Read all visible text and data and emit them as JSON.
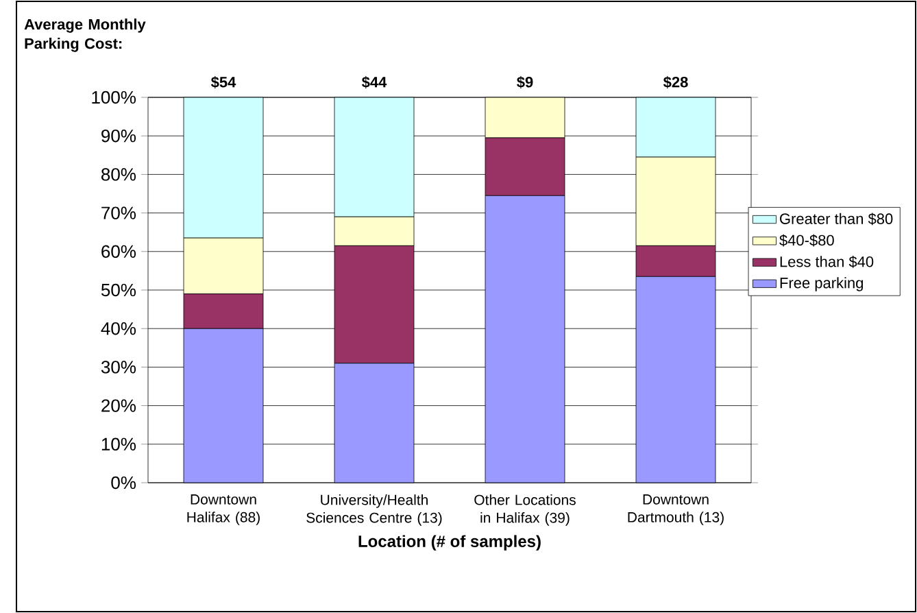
{
  "chart_data": {
    "type": "bar",
    "stacked": true,
    "title": "Average Monthly Parking Cost:",
    "xlabel": "Location (# of samples)",
    "categories": [
      "Downtown Halifax (88)",
      "University/Health Sciences Centre (13)",
      "Other Locations in Halifax (39)",
      "Downtown Dartmouth (13)"
    ],
    "series": [
      {
        "name": "Free parking",
        "color": "#9999ff",
        "values": [
          40,
          31,
          74.5,
          53.5
        ]
      },
      {
        "name": "Less than $40",
        "color": "#993366",
        "values": [
          9,
          30.5,
          15,
          8
        ]
      },
      {
        "name": "$40-$80",
        "color": "#ffffcc",
        "values": [
          14.5,
          7.5,
          10.5,
          23
        ]
      },
      {
        "name": "Greater than $80",
        "color": "#ccffff",
        "values": [
          36.5,
          31,
          0,
          15.5
        ]
      }
    ],
    "ylim": [
      0,
      100
    ],
    "yticks": [
      {
        "value": 0,
        "label": "0%"
      },
      {
        "value": 10,
        "label": "10%"
      },
      {
        "value": 20,
        "label": "20%"
      },
      {
        "value": 30,
        "label": "30%"
      },
      {
        "value": 40,
        "label": "40%"
      },
      {
        "value": 50,
        "label": "50%"
      },
      {
        "value": 60,
        "label": "60%"
      },
      {
        "value": 70,
        "label": "70%"
      },
      {
        "value": 80,
        "label": "80%"
      },
      {
        "value": 90,
        "label": "90%"
      },
      {
        "value": 100,
        "label": "100%"
      }
    ],
    "grid": "y",
    "legend": "right",
    "annotations": [
      {
        "text": "$54",
        "x": "Downtown Halifax (88)",
        "y": 100
      },
      {
        "text": "$44",
        "x": "University/Health Sciences Centre (13)",
        "y": 100
      },
      {
        "text": "$9",
        "x": "Other Locations in Halifax (39)",
        "y": 100
      },
      {
        "text": "$28",
        "x": "Downtown Dartmouth (13)",
        "y": 100
      }
    ]
  }
}
